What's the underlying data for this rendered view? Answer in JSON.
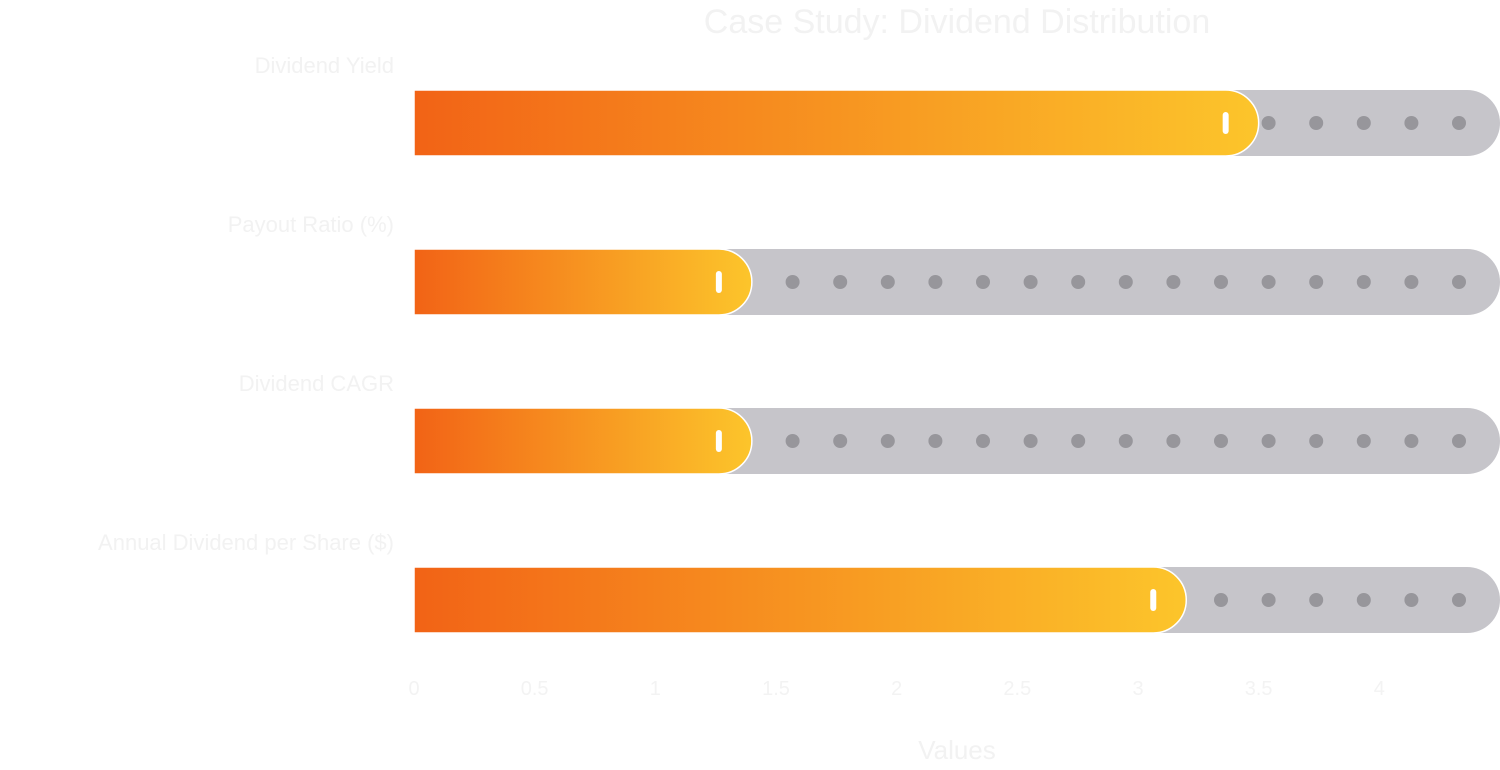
{
  "chart_data": {
    "type": "bar",
    "orientation": "horizontal",
    "title": "Case Study: Dividend Distribution",
    "categories": [
      "Dividend Yield",
      "Payout Ratio (%)",
      "Dividend CAGR",
      "Annual Dividend per Share ($)"
    ],
    "values": [
      3.5,
      1.4,
      1.4,
      3.2
    ],
    "xlim": [
      0,
      4.5
    ],
    "x_ticks": [
      "0",
      "0.5",
      "1",
      "1.5",
      "2",
      "2.5",
      "3",
      "3.5",
      "4"
    ],
    "xlabel": "Values",
    "grid": false,
    "legend": "none",
    "style": {
      "fill_gradient": [
        "#f26316",
        "#fcc52b"
      ],
      "track_color": "#c6c5ca",
      "dot_color": "#97969b",
      "knob_color": "#ffffff"
    }
  }
}
